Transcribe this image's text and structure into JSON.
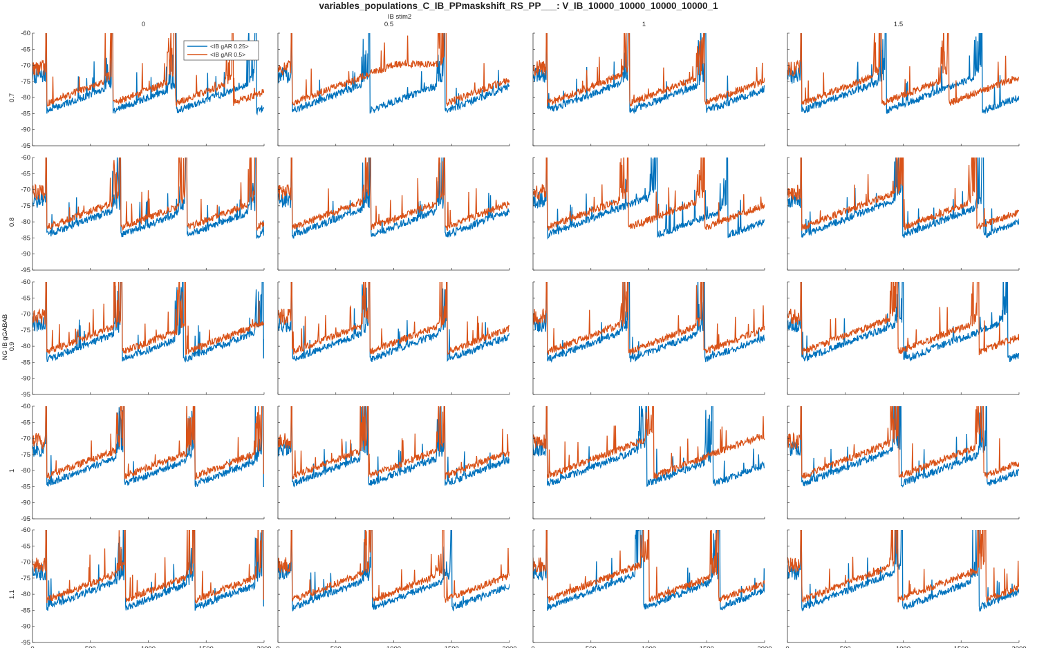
{
  "figure": {
    "title": "variables_populations_C_IB_PPmaskshift_RS_PP___: V_IB_10000_10000_10000_10000_1",
    "column_axis_label": "IB stim2",
    "row_axis_label": "NG IB gGABAB",
    "column_values": [
      "0",
      "0.5",
      "1",
      "1.5"
    ],
    "row_values": [
      "0.7",
      "0.8",
      "0.9",
      "1",
      "1.1"
    ]
  },
  "legend": {
    "entries": [
      {
        "label": "<IB gAR 0.25>",
        "color": "#0072BD"
      },
      {
        "label": "<IB gAR 0.5>",
        "color": "#D95319"
      }
    ]
  },
  "chart_data": {
    "type": "line",
    "layout": "grid 5 rows x 4 columns of small-multiple line plots",
    "xlim": [
      0,
      2000
    ],
    "ylim": [
      -95,
      -60
    ],
    "xticks": [
      "0",
      "500",
      "1000",
      "1500",
      "2000"
    ],
    "yticks": [
      "-60",
      "-65",
      "-70",
      "-75",
      "-80",
      "-85",
      "-90",
      "-95"
    ],
    "grid": false,
    "legend_position": "top-right of first panel",
    "series": [
      {
        "name": "<IB gAR 0.25>",
        "color": "#0072BD"
      },
      {
        "name": "<IB gAR 0.5>",
        "color": "#D95319"
      }
    ],
    "panels": [
      {
        "row": "0.7",
        "col": "0",
        "blue_bursts": [
          120,
          690,
          1240,
          1930
        ],
        "orange_bursts": [
          120,
          690,
          1230,
          1730
        ]
      },
      {
        "row": "0.7",
        "col": "0.5",
        "blue_bursts": [
          120,
          790,
          1440
        ],
        "orange_bursts": [
          120,
          1450
        ]
      },
      {
        "row": "0.7",
        "col": "1",
        "blue_bursts": [
          120,
          830,
          1490
        ],
        "orange_bursts": [
          120,
          830,
          1480
        ]
      },
      {
        "row": "0.7",
        "col": "1.5",
        "blue_bursts": [
          120,
          850,
          1680
        ],
        "orange_bursts": [
          120,
          810,
          1390
        ]
      },
      {
        "row": "0.8",
        "col": "0",
        "blue_bursts": [
          120,
          760,
          1330,
          1930
        ],
        "orange_bursts": [
          120,
          760,
          1330,
          1930
        ]
      },
      {
        "row": "0.8",
        "col": "0.5",
        "blue_bursts": [
          120,
          800,
          1440
        ],
        "orange_bursts": [
          120,
          800,
          1440
        ]
      },
      {
        "row": "0.8",
        "col": "1",
        "blue_bursts": [
          120,
          1070,
          1680
        ],
        "orange_bursts": [
          120,
          820,
          1480
        ]
      },
      {
        "row": "0.8",
        "col": "1.5",
        "blue_bursts": [
          120,
          990,
          1690
        ],
        "orange_bursts": [
          120,
          1000,
          1630
        ]
      },
      {
        "row": "0.9",
        "col": "0",
        "blue_bursts": [
          120,
          770,
          1300,
          1990
        ],
        "orange_bursts": [
          120,
          770,
          1320
        ]
      },
      {
        "row": "0.9",
        "col": "0.5",
        "blue_bursts": [
          120,
          790,
          1460
        ],
        "orange_bursts": [
          120,
          790,
          1460
        ]
      },
      {
        "row": "0.9",
        "col": "1",
        "blue_bursts": [
          120,
          830,
          1480
        ],
        "orange_bursts": [
          120,
          820,
          1470
        ]
      },
      {
        "row": "0.9",
        "col": "1.5",
        "blue_bursts": [
          120,
          1000,
          1900
        ],
        "orange_bursts": [
          120,
          950,
          1650
        ]
      },
      {
        "row": "1",
        "col": "0",
        "blue_bursts": [
          120,
          790,
          1400,
          1990
        ],
        "orange_bursts": [
          120,
          790,
          1400,
          1990
        ]
      },
      {
        "row": "1",
        "col": "0.5",
        "blue_bursts": [
          120,
          780,
          1440
        ],
        "orange_bursts": [
          120,
          780,
          1440
        ]
      },
      {
        "row": "1",
        "col": "1",
        "blue_bursts": [
          120,
          980,
          1550
        ],
        "orange_bursts": [
          120,
          1040
        ]
      },
      {
        "row": "1",
        "col": "1.5",
        "blue_bursts": [
          120,
          980,
          1720
        ],
        "orange_bursts": [
          120,
          960,
          1690
        ]
      },
      {
        "row": "1.1",
        "col": "0",
        "blue_bursts": [
          120,
          800,
          1400,
          1990
        ],
        "orange_bursts": [
          120,
          800,
          1400,
          1990
        ]
      },
      {
        "row": "1.1",
        "col": "0.5",
        "blue_bursts": [
          120,
          810,
          1500
        ],
        "orange_bursts": [
          120,
          810,
          1430
        ]
      },
      {
        "row": "1.1",
        "col": "1",
        "blue_bursts": [
          120,
          950,
          1610
        ],
        "orange_bursts": [
          120,
          1000,
          1600
        ]
      },
      {
        "row": "1.1",
        "col": "1.5",
        "blue_bursts": [
          120,
          990,
          1650
        ],
        "orange_bursts": [
          120,
          950,
          1710
        ]
      }
    ]
  }
}
